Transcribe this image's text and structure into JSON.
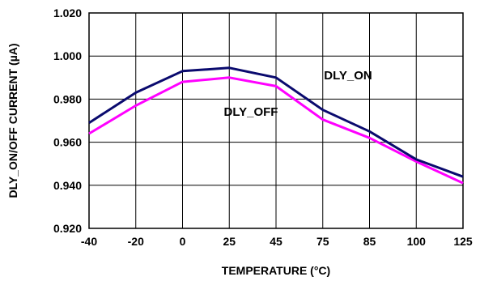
{
  "chart_data": {
    "type": "line",
    "title": "",
    "xlabel": "TEMPERATURE (°C)",
    "ylabel": "DLY_ON/OFF CURRENT (µA)",
    "categories": [
      "-40",
      "-20",
      "0",
      "25",
      "45",
      "75",
      "85",
      "100",
      "125"
    ],
    "y_ticks": [
      "0.920",
      "0.940",
      "0.960",
      "0.980",
      "1.000",
      "1.020"
    ],
    "ylim": [
      0.92,
      1.02
    ],
    "grid": true,
    "series": [
      {
        "name": "DLY_ON",
        "color": "#0a0a6e",
        "values": [
          0.969,
          0.983,
          0.993,
          0.9945,
          0.99,
          0.975,
          0.965,
          0.952,
          0.944
        ]
      },
      {
        "name": "DLY_OFF",
        "color": "#ff00ff",
        "values": [
          0.964,
          0.977,
          0.988,
          0.99,
          0.986,
          0.9705,
          0.962,
          0.951,
          0.941
        ]
      }
    ]
  }
}
